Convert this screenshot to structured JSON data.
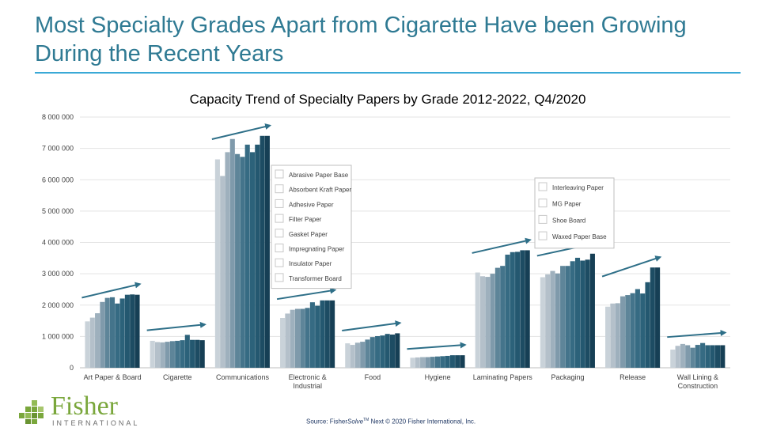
{
  "header": {
    "title": "Most Specialty Grades Apart from Cigarette Have been Growing During the Recent Years"
  },
  "footer": {
    "source_prefix": "Source: Fisher",
    "source_italic": "Solve",
    "source_tm": "TM",
    "source_rest": " Next © 2020 Fisher International, Inc.",
    "logo_word": "Fisher",
    "logo_sub": "INTERNATIONAL"
  },
  "colors": {
    "title": "#2f7a93",
    "rule": "#3aa9d6",
    "arrow": "#2e6f88",
    "logo": "#7aa73c",
    "bars_light_to_dark": [
      "#c9d2d9",
      "#b4c0ca",
      "#9eb0bd",
      "#7f9aab",
      "#5e8599",
      "#44748b",
      "#366b83",
      "#2c627a",
      "#245870",
      "#1d4c63",
      "#163f55"
    ]
  },
  "chart_data": {
    "type": "bar",
    "title": "Capacity Trend of Specialty Papers by Grade 2012-2022, Q4/2020",
    "ylim": [
      0,
      8000000
    ],
    "yticks": [
      {
        "value": 0,
        "label": "0"
      },
      {
        "value": 1000000,
        "label": "1 000 000"
      },
      {
        "value": 2000000,
        "label": "2 000 000"
      },
      {
        "value": 3000000,
        "label": "3 000 000"
      },
      {
        "value": 4000000,
        "label": "4 000 000"
      },
      {
        "value": 5000000,
        "label": "5 000 000"
      },
      {
        "value": 6000000,
        "label": "6 000 000"
      },
      {
        "value": 7000000,
        "label": "7 000 000"
      },
      {
        "value": 8000000,
        "label": "8 000 000"
      }
    ],
    "grid": true,
    "groups": [
      {
        "name": "Art Paper & Board",
        "values": [
          1480000,
          1600000,
          1740000,
          2100000,
          2230000,
          2250000,
          2050000,
          2210000,
          2330000,
          2340000,
          2330000
        ]
      },
      {
        "name": "Cigarette",
        "values": [
          860000,
          820000,
          810000,
          830000,
          850000,
          860000,
          880000,
          1050000,
          890000,
          890000,
          880000
        ]
      },
      {
        "name": "Communications",
        "values": [
          6650000,
          6120000,
          6880000,
          7300000,
          6820000,
          6730000,
          7120000,
          6880000,
          7120000,
          7400000,
          7400000
        ]
      },
      {
        "name": "Electronic & Industrial",
        "values": [
          1590000,
          1730000,
          1850000,
          1880000,
          1880000,
          1910000,
          2090000,
          1980000,
          2150000,
          2150000,
          2150000
        ]
      },
      {
        "name": "Food",
        "values": [
          780000,
          730000,
          800000,
          830000,
          900000,
          980000,
          1010000,
          1030000,
          1080000,
          1060000,
          1100000
        ]
      },
      {
        "name": "Hygiene",
        "values": [
          320000,
          330000,
          340000,
          340000,
          350000,
          360000,
          370000,
          380000,
          400000,
          400000,
          400000
        ]
      },
      {
        "name": "Laminating Papers",
        "values": [
          3040000,
          2920000,
          2900000,
          3000000,
          3190000,
          3250000,
          3610000,
          3690000,
          3700000,
          3750000,
          3750000
        ]
      },
      {
        "name": "Packaging",
        "values": [
          2890000,
          2980000,
          3090000,
          3010000,
          3250000,
          3250000,
          3400000,
          3510000,
          3420000,
          3450000,
          3640000
        ]
      },
      {
        "name": "Release",
        "values": [
          1950000,
          2050000,
          2060000,
          2280000,
          2320000,
          2380000,
          2510000,
          2370000,
          2730000,
          3200000,
          3200000
        ]
      },
      {
        "name": "Wall Lining & Construction",
        "values": [
          580000,
          700000,
          760000,
          720000,
          640000,
          730000,
          790000,
          720000,
          720000,
          720000,
          720000
        ]
      }
    ],
    "category_labels": [
      [
        "Art Paper & Board"
      ],
      [
        "Cigarette"
      ],
      [
        "Communications"
      ],
      [
        "Electronic &",
        "Industrial"
      ],
      [
        "Food"
      ],
      [
        "Hygiene"
      ],
      [
        "Laminating Papers"
      ],
      [
        "Packaging"
      ],
      [
        "Release"
      ],
      [
        "Wall Lining &",
        "Construction"
      ]
    ],
    "legends": [
      {
        "items": [
          "Abrasive Paper Base",
          "Absorbent Kraft Paper",
          "Adhesive Paper",
          "Filter Paper",
          "Gasket Paper",
          "Impregnating Paper",
          "Insulator Paper",
          "Transformer Board"
        ]
      },
      {
        "items": [
          "Interleaving Paper",
          "MG Paper",
          "Shoe Board",
          "Waxed Paper Base"
        ]
      }
    ]
  }
}
